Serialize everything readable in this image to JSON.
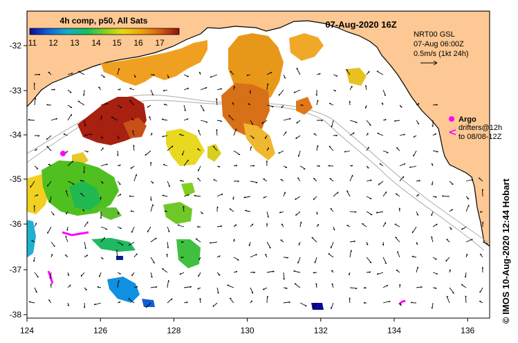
{
  "map": {
    "title": "07-Aug-2020 16Z",
    "colorbar": {
      "title": "4h comp, p50, All Sats",
      "ticks": [
        "11",
        "12",
        "13",
        "14",
        "15",
        "16",
        "17"
      ],
      "range": [
        11,
        18
      ]
    },
    "current_legend": {
      "line1": "NRT00 GSL",
      "line2": "07-Aug 06:00Z",
      "line3": "0.5m/s (1kt 24h)"
    },
    "argo_legend": {
      "label": "Argo",
      "drifters_line1": "drifters@12h",
      "drifters_line2": "to 08/08-12Z"
    },
    "credit": "© IMOS 10-Aug-2020 12:44 Hobart",
    "x_axis": {
      "ticks": [
        "124",
        "126",
        "128",
        "130",
        "132",
        "134",
        "136"
      ],
      "range": [
        124,
        136.6
      ]
    },
    "y_axis": {
      "ticks": [
        "-32",
        "-33",
        "-34",
        "-35",
        "-36",
        "-37",
        "-38"
      ],
      "range": [
        -38.1,
        -31.4
      ]
    },
    "colors": {
      "land": "#FDC893",
      "ocean": "#FFFFFF",
      "drifter": "#FF00FF",
      "contour": "#AAAAAA"
    }
  }
}
